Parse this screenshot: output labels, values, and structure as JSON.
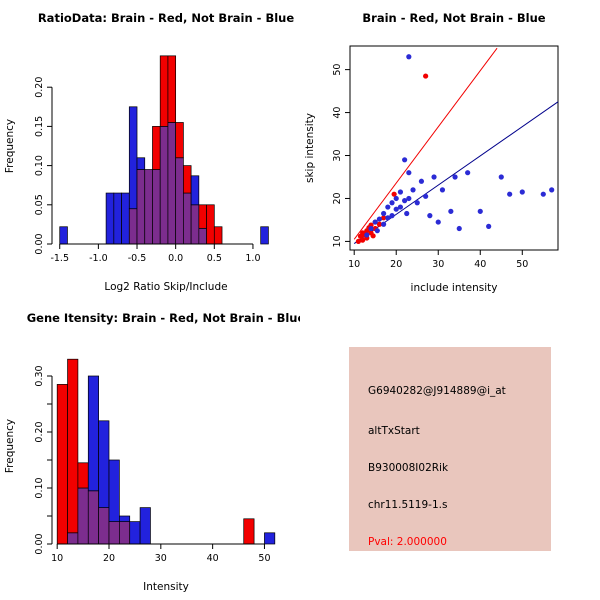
{
  "figure": {
    "bg_color": "#FFFFFF"
  },
  "chart_data": [
    {
      "type": "histogram",
      "title": "RatioData: Brain - Red, Not Brain - Blue",
      "xlabel": "Log2 Ratio Skip/Include",
      "ylabel": "Frequency",
      "xlim": [
        -1.6,
        1.35
      ],
      "ylim": [
        0,
        0.25
      ],
      "xticks": [
        -1.5,
        -1.0,
        -0.5,
        0.0,
        0.5,
        1.0
      ],
      "xtick_labels": [
        "-1.5",
        "-1.0",
        "-0.5",
        "0.0",
        "0.5",
        "1.0"
      ],
      "yticks": [
        0,
        0.05,
        0.1,
        0.15,
        0.2
      ],
      "ytick_labels": [
        "0.00",
        "0.05",
        "0.10",
        "0.15",
        "0.20"
      ],
      "series_legend": {
        "red": "Brain",
        "blue": "Not Brain"
      },
      "colors": {
        "red": "#F20000",
        "blue": "#2222DD",
        "overlap": "#7C2D8E"
      },
      "bin_width": 0.1,
      "bins": [
        {
          "x0": -1.5,
          "x1": -1.4,
          "red": 0,
          "blue": 0.022
        },
        {
          "x0": -0.9,
          "x1": -0.8,
          "red": 0,
          "blue": 0.065
        },
        {
          "x0": -0.8,
          "x1": -0.7,
          "red": 0,
          "blue": 0.065
        },
        {
          "x0": -0.7,
          "x1": -0.6,
          "red": 0,
          "blue": 0.065
        },
        {
          "x0": -0.6,
          "x1": -0.5,
          "red": 0.045,
          "blue": 0.175
        },
        {
          "x0": -0.5,
          "x1": -0.4,
          "red": 0.095,
          "blue": 0.11
        },
        {
          "x0": -0.4,
          "x1": -0.3,
          "red": 0.095,
          "blue": 0.095
        },
        {
          "x0": -0.3,
          "x1": -0.2,
          "red": 0.15,
          "blue": 0.095
        },
        {
          "x0": -0.2,
          "x1": -0.1,
          "red": 0.24,
          "blue": 0.15
        },
        {
          "x0": -0.1,
          "x1": 0.0,
          "red": 0.24,
          "blue": 0.155
        },
        {
          "x0": 0.0,
          "x1": 0.1,
          "red": 0.155,
          "blue": 0.11
        },
        {
          "x0": 0.1,
          "x1": 0.2,
          "red": 0.1,
          "blue": 0.065
        },
        {
          "x0": 0.2,
          "x1": 0.3,
          "red": 0.05,
          "blue": 0.087
        },
        {
          "x0": 0.3,
          "x1": 0.4,
          "red": 0.05,
          "blue": 0.02
        },
        {
          "x0": 0.4,
          "x1": 0.5,
          "red": 0.05,
          "blue": 0
        },
        {
          "x0": 0.5,
          "x1": 0.6,
          "red": 0.022,
          "blue": 0
        },
        {
          "x0": 1.1,
          "x1": 1.2,
          "red": 0,
          "blue": 0.022
        }
      ]
    },
    {
      "type": "scatter",
      "title": "Brain - Red, Not Brain - Blue",
      "xlabel": "include intensity",
      "ylabel": "skip intensity",
      "xlim": [
        9,
        58.5
      ],
      "ylim": [
        8,
        55.5
      ],
      "xticks": [
        10,
        20,
        30,
        40,
        50
      ],
      "xtick_labels": [
        "10",
        "20",
        "30",
        "40",
        "50"
      ],
      "yticks": [
        10,
        20,
        30,
        40,
        50
      ],
      "ytick_labels": [
        "10",
        "20",
        "30",
        "40",
        "50"
      ],
      "lines": [
        {
          "name": "brain-fit-line",
          "color": "#F20000",
          "x": [
            10,
            44
          ],
          "y": [
            10.5,
            55
          ]
        },
        {
          "name": "not-brain-fit-line",
          "color": "#00008B",
          "x": [
            10,
            58.5
          ],
          "y": [
            9.5,
            42.5
          ]
        }
      ],
      "series": [
        {
          "name": "Brain",
          "color": "#F20000",
          "points": [
            [
              11,
              10
            ],
            [
              11.5,
              11.2
            ],
            [
              12,
              10.3
            ],
            [
              12,
              12
            ],
            [
              12.5,
              11.5
            ],
            [
              13,
              12.5
            ],
            [
              13,
              10.8
            ],
            [
              13.5,
              13.2
            ],
            [
              14,
              12
            ],
            [
              14,
              13.8
            ],
            [
              14.5,
              11.3
            ],
            [
              15,
              13
            ],
            [
              15,
              14.5
            ],
            [
              16,
              14
            ],
            [
              17,
              15.5
            ],
            [
              19.5,
              21
            ],
            [
              27,
              48.5
            ]
          ]
        },
        {
          "name": "Not Brain",
          "color": "#2B2BD5",
          "points": [
            [
              13,
              11.5
            ],
            [
              14,
              13
            ],
            [
              15,
              14.5
            ],
            [
              15.5,
              12.5
            ],
            [
              16,
              15.2
            ],
            [
              17,
              16.5
            ],
            [
              17,
              14
            ],
            [
              18,
              18
            ],
            [
              18,
              15.5
            ],
            [
              19,
              19
            ],
            [
              19,
              16
            ],
            [
              20,
              20
            ],
            [
              20,
              17.5
            ],
            [
              21,
              21.5
            ],
            [
              21,
              18
            ],
            [
              22,
              19.5
            ],
            [
              22,
              29
            ],
            [
              22.5,
              16.5
            ],
            [
              23,
              20
            ],
            [
              23,
              26
            ],
            [
              23,
              53
            ],
            [
              24,
              22
            ],
            [
              25,
              19
            ],
            [
              26,
              24
            ],
            [
              27,
              20.5
            ],
            [
              28,
              16
            ],
            [
              29,
              25
            ],
            [
              30,
              14.5
            ],
            [
              31,
              22
            ],
            [
              33,
              17
            ],
            [
              34,
              25
            ],
            [
              35,
              13
            ],
            [
              37,
              26
            ],
            [
              40,
              17
            ],
            [
              42,
              13.5
            ],
            [
              45,
              25
            ],
            [
              47,
              21
            ],
            [
              50,
              21.5
            ],
            [
              55,
              21
            ],
            [
              57,
              22
            ]
          ]
        }
      ]
    },
    {
      "type": "histogram",
      "title": "Gene Itensity: Brain - Red, Not Brain - Blue",
      "xlabel": "Intensity",
      "ylabel": "Frequency",
      "xlim": [
        9,
        53
      ],
      "ylim": [
        0,
        0.35
      ],
      "xticks": [
        10,
        20,
        30,
        40,
        50
      ],
      "xtick_labels": [
        "10",
        "20",
        "30",
        "40",
        "50"
      ],
      "yticks": [
        0,
        0.05,
        0.1,
        0.15,
        0.2,
        0.25,
        0.3
      ],
      "ytick_labels": [
        "0.00",
        "",
        "0.10",
        "",
        "0.20",
        "",
        "0.30"
      ],
      "series_legend": {
        "red": "Brain",
        "blue": "Not Brain"
      },
      "colors": {
        "red": "#F20000",
        "blue": "#2222DD",
        "overlap": "#7C2D8E"
      },
      "bin_width": 2,
      "bins": [
        {
          "x0": 10,
          "x1": 12,
          "red": 0.285,
          "blue": 0
        },
        {
          "x0": 12,
          "x1": 14,
          "red": 0.33,
          "blue": 0.02
        },
        {
          "x0": 14,
          "x1": 16,
          "red": 0.145,
          "blue": 0.1
        },
        {
          "x0": 16,
          "x1": 18,
          "red": 0.095,
          "blue": 0.3
        },
        {
          "x0": 18,
          "x1": 20,
          "red": 0.065,
          "blue": 0.22
        },
        {
          "x0": 20,
          "x1": 22,
          "red": 0.04,
          "blue": 0.15
        },
        {
          "x0": 22,
          "x1": 24,
          "red": 0.04,
          "blue": 0.05
        },
        {
          "x0": 24,
          "x1": 26,
          "red": 0,
          "blue": 0.04
        },
        {
          "x0": 26,
          "x1": 28,
          "red": 0,
          "blue": 0.065
        },
        {
          "x0": 46,
          "x1": 48,
          "red": 0.045,
          "blue": 0
        },
        {
          "x0": 50,
          "x1": 52,
          "red": 0,
          "blue": 0.02
        }
      ]
    }
  ],
  "info_panel": {
    "bg_color": "#E9C6BD",
    "lines": [
      {
        "text": "G6940282@J914889@i_at",
        "color": "#000000"
      },
      {
        "text": "altTxStart",
        "color": "#000000"
      },
      {
        "text": "B930008I02Rik",
        "color": "#000000"
      },
      {
        "text": "chr11.5119-1.s",
        "color": "#000000"
      },
      {
        "text": "Pval: 2.000000",
        "color": "#FF0000"
      }
    ]
  }
}
